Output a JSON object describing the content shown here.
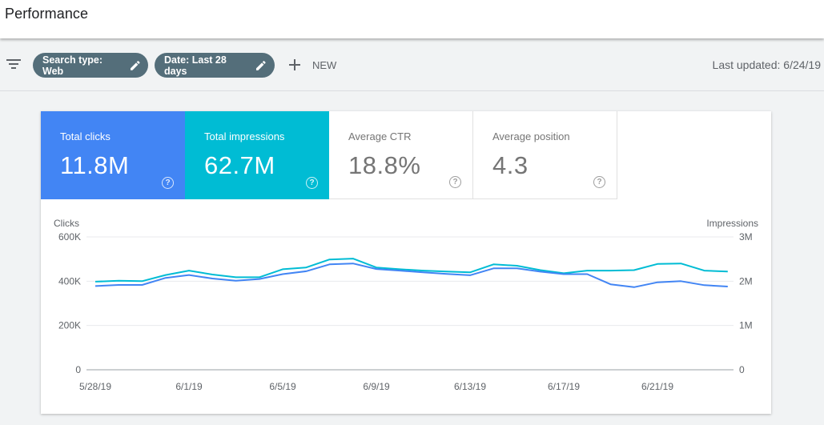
{
  "header": {
    "title": "Performance"
  },
  "filters": {
    "chips": [
      {
        "label": "Search type: Web"
      },
      {
        "label": "Date: Last 28 days"
      }
    ],
    "new_label": "NEW",
    "last_updated": "Last updated: 6/24/19"
  },
  "metrics": [
    {
      "label": "Total clicks",
      "value": "11.8M",
      "color": "#4285f4",
      "selected": true
    },
    {
      "label": "Total impressions",
      "value": "62.7M",
      "color": "#00bcd4",
      "selected": true
    },
    {
      "label": "Average CTR",
      "value": "18.8%",
      "selected": false
    },
    {
      "label": "Average position",
      "value": "4.3",
      "selected": false
    }
  ],
  "chart_data": {
    "type": "line",
    "x": [
      "5/28/19",
      "5/29/19",
      "5/30/19",
      "5/31/19",
      "6/1/19",
      "6/2/19",
      "6/3/19",
      "6/4/19",
      "6/5/19",
      "6/6/19",
      "6/7/19",
      "6/8/19",
      "6/9/19",
      "6/10/19",
      "6/11/19",
      "6/12/19",
      "6/13/19",
      "6/14/19",
      "6/15/19",
      "6/16/19",
      "6/17/19",
      "6/18/19",
      "6/19/19",
      "6/20/19",
      "6/21/19",
      "6/22/19",
      "6/23/19",
      "6/24/19"
    ],
    "x_ticks": [
      "5/28/19",
      "6/1/19",
      "6/5/19",
      "6/9/19",
      "6/13/19",
      "6/17/19",
      "6/21/19"
    ],
    "left_axis": {
      "label": "Clicks",
      "ticks": [
        "600K",
        "400K",
        "200K",
        "0"
      ],
      "range": [
        0,
        600000
      ]
    },
    "right_axis": {
      "label": "Impressions",
      "ticks": [
        "3M",
        "2M",
        "1M",
        "0"
      ],
      "range": [
        0,
        3000000
      ]
    },
    "grid": true,
    "series": [
      {
        "name": "Clicks",
        "axis": "left",
        "color": "#4285f4",
        "values": [
          378000,
          383000,
          383000,
          415000,
          428000,
          412000,
          402000,
          410000,
          432000,
          445000,
          476000,
          480000,
          455000,
          448000,
          440000,
          433000,
          427000,
          458000,
          458000,
          443000,
          432000,
          432000,
          386000,
          373000,
          395000,
          400000,
          382000,
          376000
        ]
      },
      {
        "name": "Impressions",
        "axis": "right",
        "color": "#00bcd4",
        "values": [
          1990000,
          2010000,
          2000000,
          2140000,
          2240000,
          2150000,
          2090000,
          2090000,
          2270000,
          2310000,
          2490000,
          2510000,
          2310000,
          2270000,
          2240000,
          2220000,
          2200000,
          2380000,
          2350000,
          2250000,
          2180000,
          2240000,
          2240000,
          2250000,
          2390000,
          2400000,
          2240000,
          2220000
        ]
      }
    ]
  }
}
